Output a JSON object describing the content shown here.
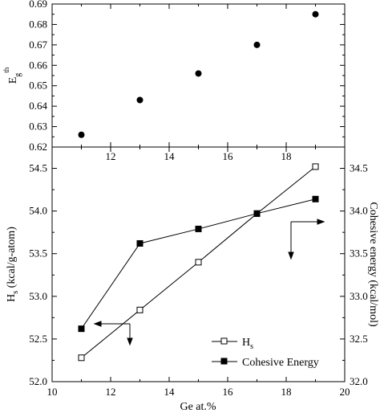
{
  "chart_data": [
    {
      "type": "scatter",
      "title": "",
      "xlabel": "",
      "ylabel": "E",
      "ylabel_sub": "g",
      "ylabel_sup": "th",
      "xlim": [
        10,
        20
      ],
      "ylim": [
        0.62,
        0.69
      ],
      "xticks": [
        12,
        14,
        16,
        18
      ],
      "yticks": [
        0.62,
        0.63,
        0.64,
        0.65,
        0.66,
        0.67,
        0.68,
        0.69
      ],
      "series": [
        {
          "x": [
            11,
            13,
            15,
            17,
            19
          ],
          "y": [
            0.626,
            0.643,
            0.656,
            0.67,
            0.685
          ]
        }
      ]
    },
    {
      "type": "line",
      "title": "",
      "xlabel": "Ge at.%",
      "xlim": [
        10,
        20
      ],
      "xticks": [
        10,
        12,
        14,
        16,
        18,
        20
      ],
      "left_axis": {
        "label": "H",
        "label_sub": "s",
        "label_rest": " (kcal/g-atom)",
        "ylim": [
          52.0,
          54.75
        ],
        "yticks": [
          52.0,
          52.5,
          53.0,
          53.5,
          54.0,
          54.5
        ]
      },
      "right_axis": {
        "label": "Cohesive energy (kcal/mol)",
        "ylim": [
          32.0,
          34.75
        ],
        "yticks": [
          32.0,
          32.5,
          33.0,
          33.5,
          34.0,
          34.5
        ]
      },
      "series": [
        {
          "name": "H",
          "name_sub": "s",
          "marker": "open-square",
          "axis": "left",
          "x": [
            11,
            13,
            15,
            17,
            19
          ],
          "y": [
            52.28,
            52.84,
            53.4,
            53.97,
            54.52
          ]
        },
        {
          "name": "Cohesive Energy",
          "marker": "filled-square",
          "axis": "right",
          "x": [
            11,
            13,
            15,
            17,
            19
          ],
          "y": [
            32.62,
            33.62,
            33.79,
            33.97,
            34.14
          ]
        }
      ],
      "legend_position": "bottom-right"
    }
  ]
}
